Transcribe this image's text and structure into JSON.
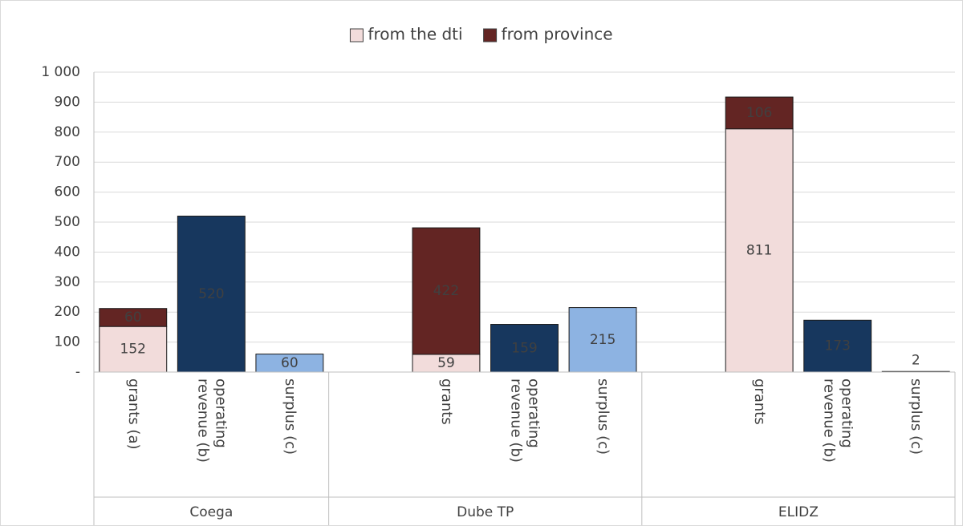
{
  "chart_data": {
    "type": "bar",
    "stacked": true,
    "groups": [
      "Coega",
      "Dube TP",
      "ELIDZ"
    ],
    "categories": [
      "grants (a)",
      "operating revenue (b)",
      "surplus (c)",
      null,
      "grants",
      "operating revenue (b)",
      "surplus (c)",
      null,
      "grants",
      "operating revenue (b)",
      "surplus (c)"
    ],
    "series": [
      {
        "name": "from the dti",
        "color": "#f2dcdb",
        "values": [
          152,
          null,
          null,
          null,
          59,
          null,
          null,
          null,
          811,
          null,
          null
        ]
      },
      {
        "name": "from province",
        "color": "#632523",
        "values": [
          60,
          null,
          null,
          null,
          422,
          null,
          null,
          null,
          106,
          null,
          null
        ]
      },
      {
        "color": "#17375e",
        "values": [
          null,
          520,
          null,
          null,
          null,
          159,
          null,
          null,
          null,
          173,
          null
        ]
      },
      {
        "color": "#8db3e2",
        "values": [
          null,
          null,
          60,
          null,
          null,
          null,
          215,
          null,
          null,
          null,
          2
        ]
      }
    ],
    "ylim": [
      0,
      1000
    ],
    "yticks": [
      {
        "value": 0,
        "label": "-"
      },
      100,
      200,
      300,
      400,
      500,
      600,
      700,
      800,
      900,
      {
        "value": 1000,
        "label": "1 000"
      }
    ],
    "grid": true,
    "legend": "top"
  }
}
